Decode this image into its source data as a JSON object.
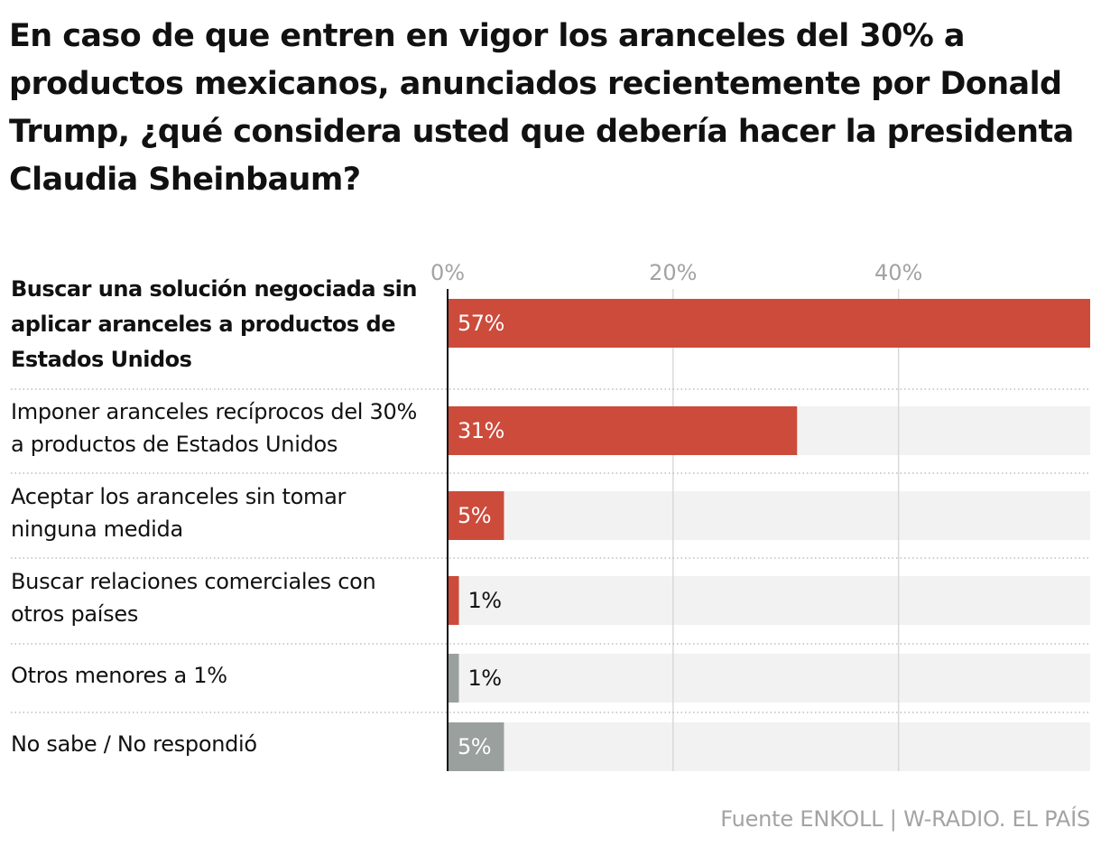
{
  "chart_data": {
    "type": "bar",
    "orientation": "horizontal",
    "title": "En caso de que entren en vigor los aranceles del 30% a productos mexicanos, anunciados recientemente por Donald Trump, ¿qué considera usted que debería hacer la presidenta Claudia Sheinbaum?",
    "categories": [
      "Buscar una solución negociada sin aplicar aranceles a productos de Estados Unidos",
      "Imponer aranceles recíprocos del 30% a productos de Estados Unidos",
      "Aceptar los aranceles sin tomar ninguna medida",
      "Buscar relaciones comerciales con otros países",
      "Otros menores a 1%",
      "No sabe / No respondió"
    ],
    "values": [
      57,
      31,
      5,
      1,
      1,
      5
    ],
    "value_labels": [
      "57%",
      "31%",
      "5%",
      "1%",
      "1%",
      "5%"
    ],
    "bar_colors": [
      "#cc4b3b",
      "#cc4b3b",
      "#cc4b3b",
      "#cc4b3b",
      "#9aa09e",
      "#9aa09e"
    ],
    "highlighted_category_index": 0,
    "xlim": [
      0,
      57
    ],
    "xticks": [
      0,
      20,
      40
    ],
    "xtick_labels": [
      "0%",
      "20%",
      "40%"
    ],
    "xlabel": "",
    "ylabel": "",
    "grid": true,
    "track_color": "#f2f2f2",
    "source": "Fuente ENKOLL | W-RADIO. EL PAÍS"
  }
}
